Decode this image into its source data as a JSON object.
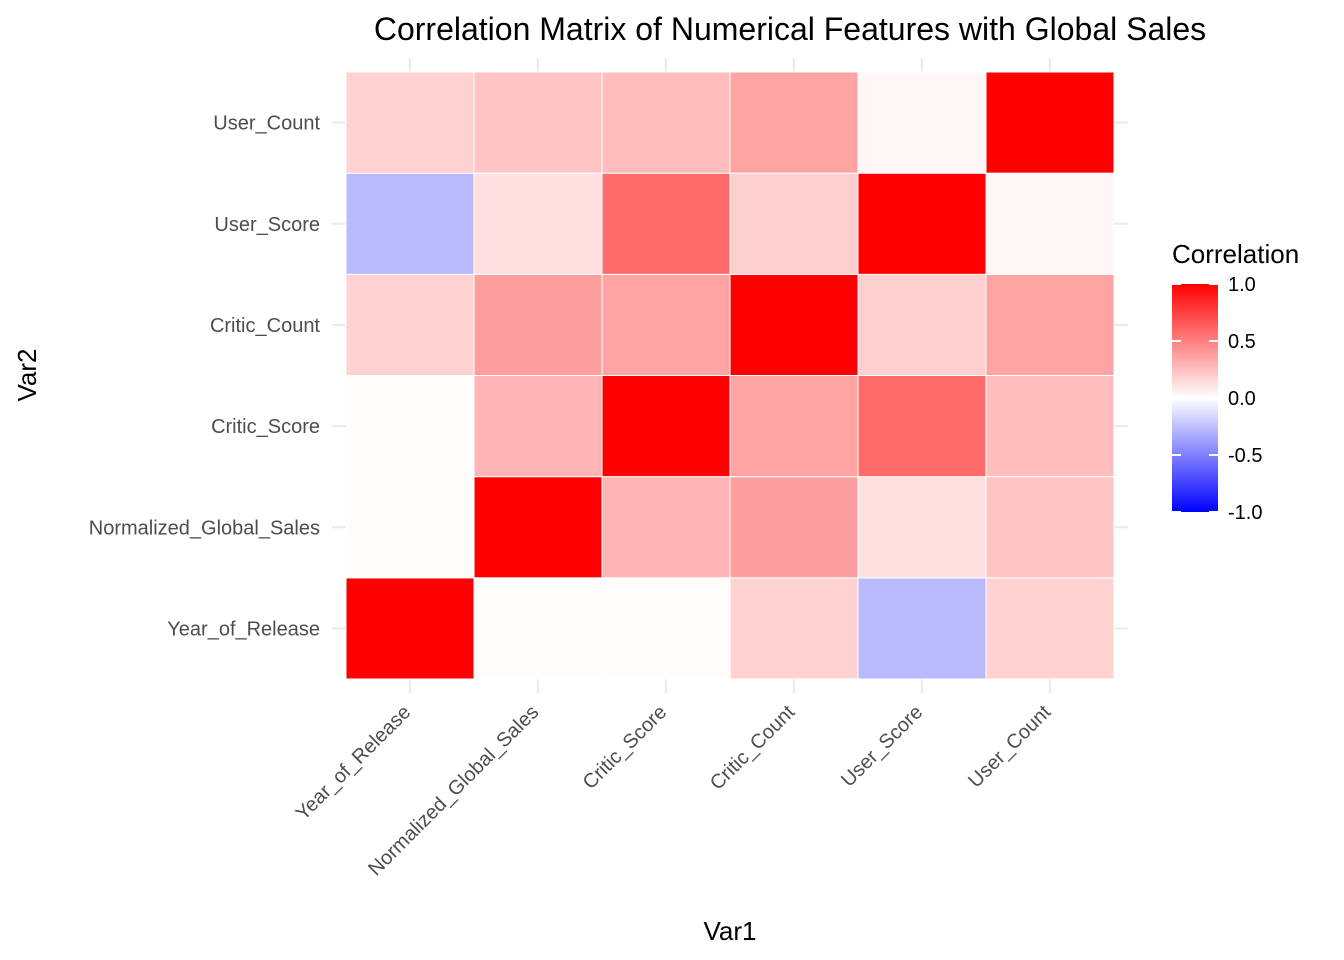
{
  "chart_data": {
    "type": "heatmap",
    "title": "Correlation Matrix of Numerical Features with Global Sales",
    "xlabel": "Var1",
    "ylabel": "Var2",
    "x_categories": [
      "Year_of_Release",
      "Normalized_Global_Sales",
      "Critic_Score",
      "Critic_Count",
      "User_Score",
      "User_Count"
    ],
    "y_categories": [
      "Year_of_Release",
      "Normalized_Global_Sales",
      "Critic_Score",
      "Critic_Count",
      "User_Score",
      "User_Count"
    ],
    "values": [
      [
        1.0,
        0.01,
        0.01,
        0.18,
        -0.27,
        0.18
      ],
      [
        0.01,
        1.0,
        0.29,
        0.38,
        0.12,
        0.23
      ],
      [
        0.01,
        0.29,
        1.0,
        0.36,
        0.58,
        0.26
      ],
      [
        0.18,
        0.38,
        0.36,
        1.0,
        0.19,
        0.36
      ],
      [
        -0.27,
        0.12,
        0.58,
        0.19,
        1.0,
        0.03
      ],
      [
        0.18,
        0.23,
        0.26,
        0.36,
        0.03,
        1.0
      ]
    ],
    "legend": {
      "title": "Correlation",
      "position": "right",
      "limits": [
        -1.0,
        1.0
      ],
      "breaks": [
        1.0,
        0.5,
        0.0,
        -0.5,
        -1.0
      ],
      "break_labels": [
        "1.0",
        "0.5",
        "0.0",
        "-0.5",
        "-1.0"
      ],
      "low_color": "#0000ff",
      "mid_color": "#ffffff",
      "high_color": "#ff0000"
    },
    "grid": true
  }
}
